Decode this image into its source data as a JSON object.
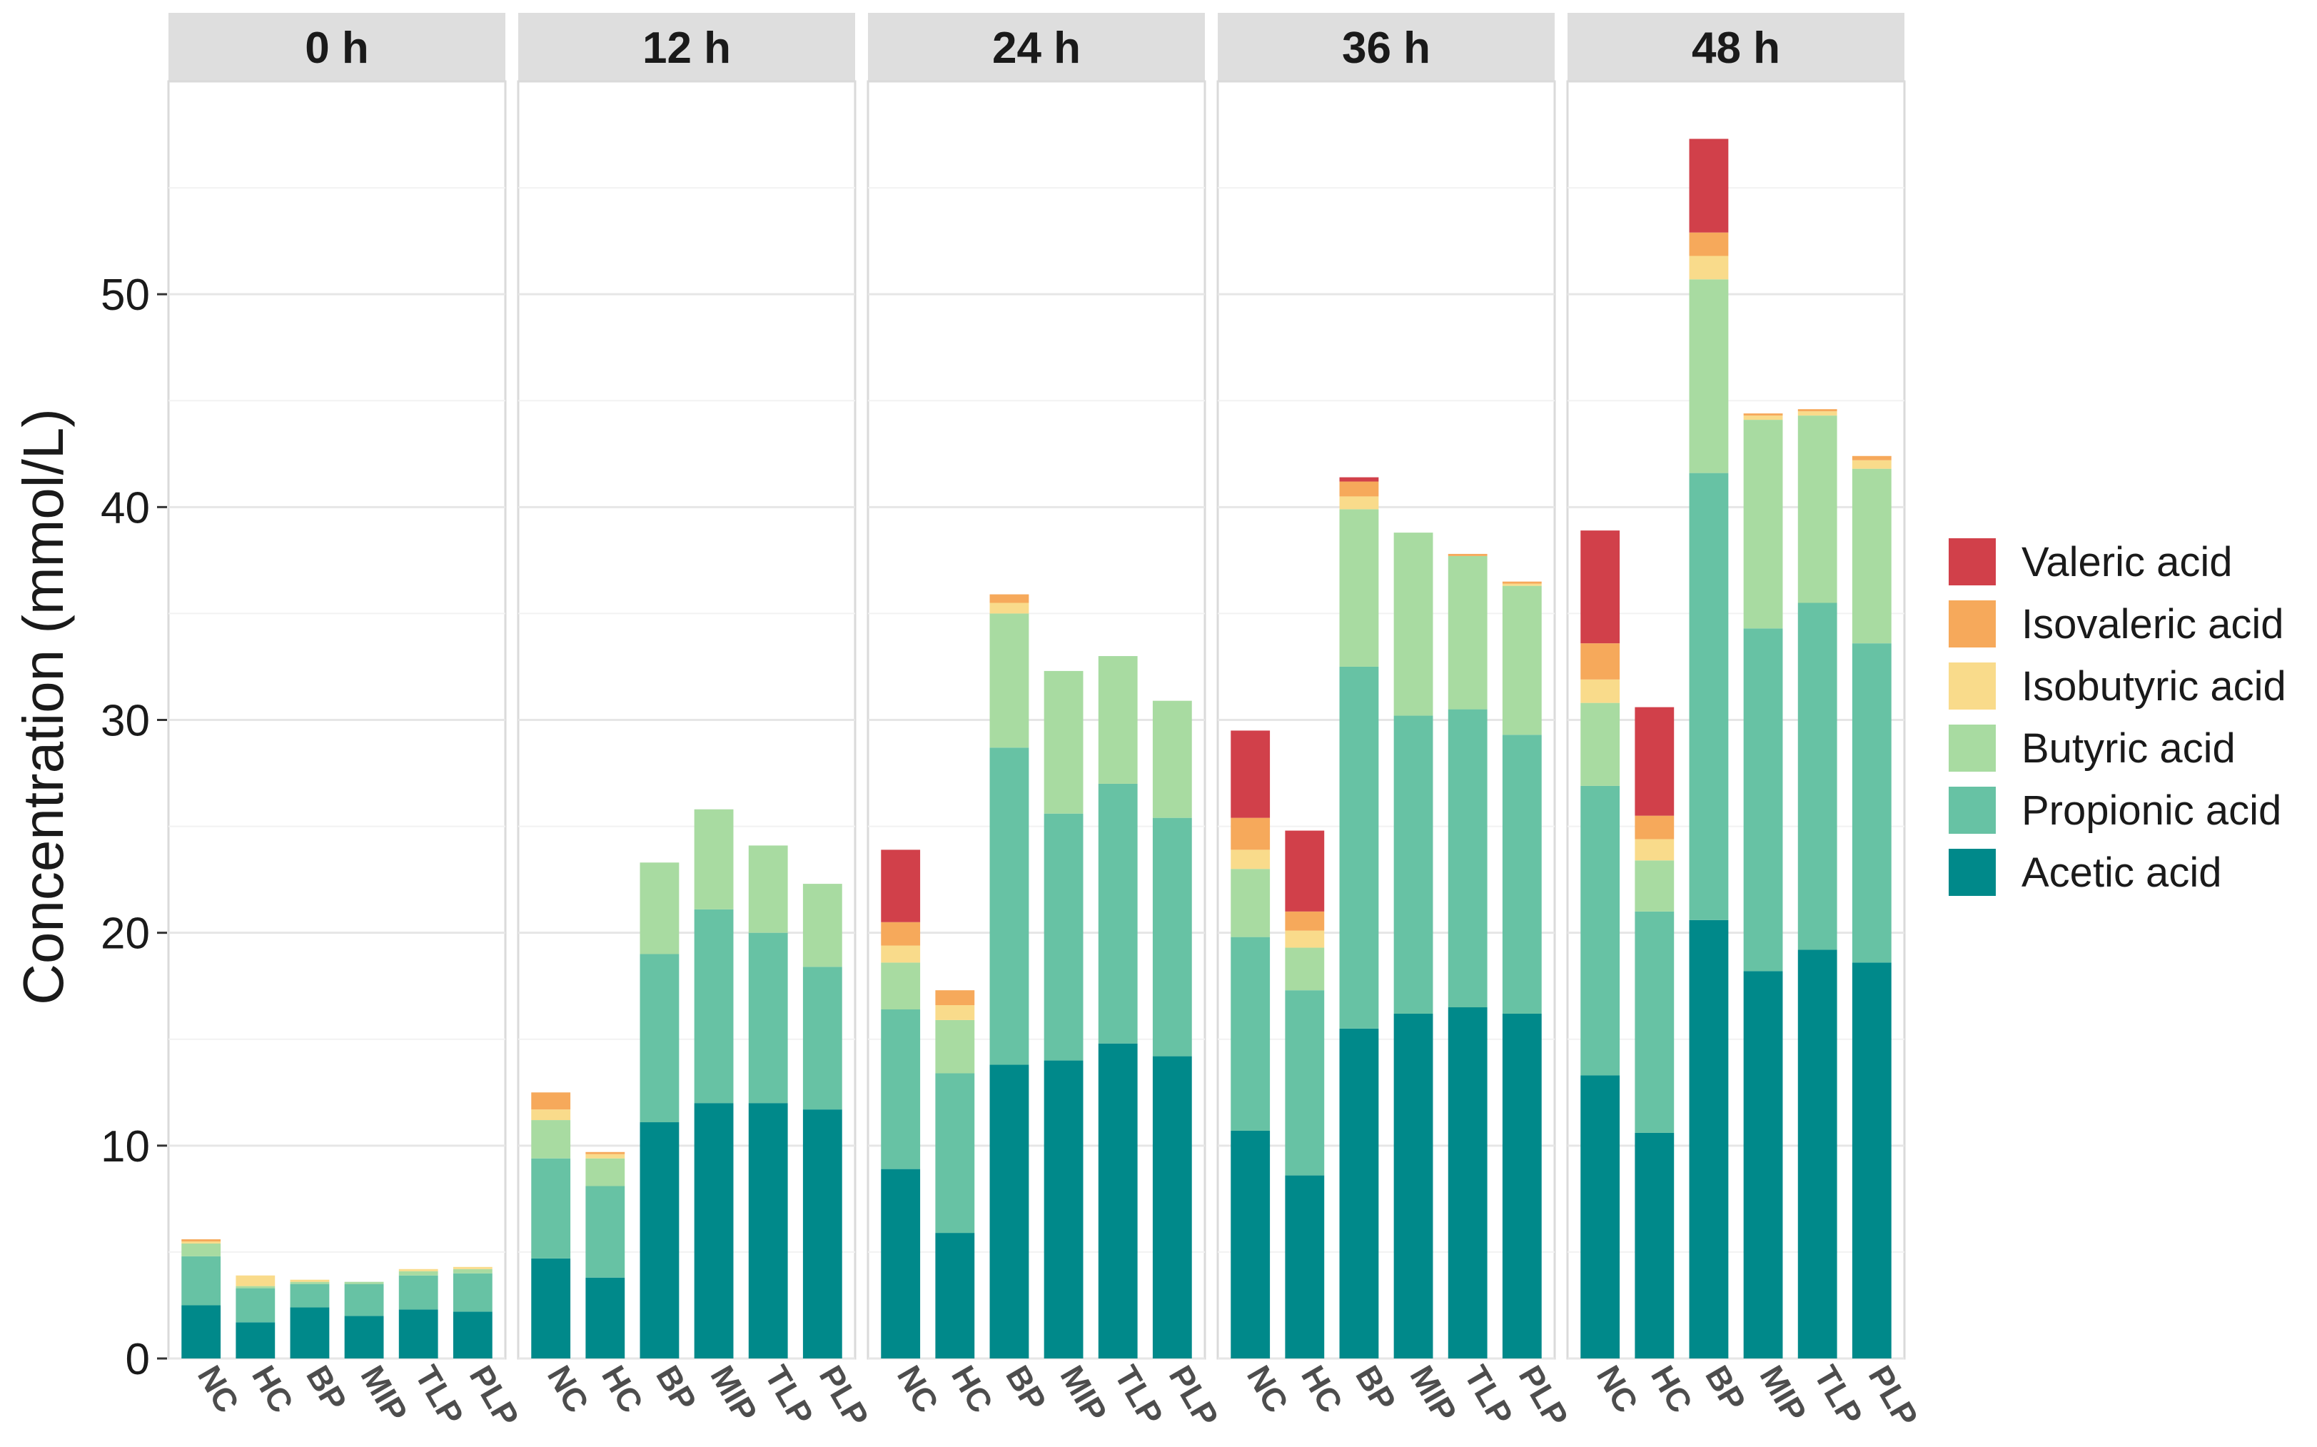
{
  "chart_data": {
    "type": "bar",
    "stacked": true,
    "faceted": true,
    "title": "",
    "xlabel": "",
    "ylabel": "Concentration (mmol/L)",
    "ylim": [
      0,
      60
    ],
    "yticks": [
      0,
      10,
      20,
      30,
      40,
      50
    ],
    "grid": true,
    "legend_position": "right",
    "panels": [
      "0 h",
      "12 h",
      "24 h",
      "36 h",
      "48 h"
    ],
    "categories": [
      "NC",
      "HC",
      "BP",
      "MIP",
      "TLP",
      "PLP"
    ],
    "series": [
      {
        "name": "Acetic acid",
        "color": "#00898A",
        "values": [
          [
            2.5,
            1.7,
            2.4,
            2.0,
            2.3,
            2.2
          ],
          [
            4.7,
            3.8,
            11.1,
            12.0,
            12.0,
            11.7
          ],
          [
            8.9,
            5.9,
            13.8,
            14.0,
            14.8,
            14.2
          ],
          [
            10.7,
            8.6,
            15.5,
            16.2,
            16.5,
            16.2
          ],
          [
            13.3,
            10.6,
            20.6,
            18.2,
            19.2,
            18.6
          ]
        ]
      },
      {
        "name": "Propionic acid",
        "color": "#67C2A4",
        "values": [
          [
            2.3,
            1.6,
            1.1,
            1.5,
            1.6,
            1.8
          ],
          [
            4.7,
            4.3,
            7.9,
            9.1,
            8.0,
            6.7
          ],
          [
            7.5,
            7.5,
            14.9,
            11.6,
            12.2,
            11.2
          ],
          [
            9.1,
            8.7,
            17.0,
            14.0,
            14.0,
            13.1
          ],
          [
            13.6,
            10.4,
            21.0,
            16.1,
            16.3,
            15.0
          ]
        ]
      },
      {
        "name": "Butyric acid",
        "color": "#A8DBA1",
        "values": [
          [
            0.6,
            0.1,
            0.1,
            0.1,
            0.2,
            0.2
          ],
          [
            1.8,
            1.3,
            4.3,
            4.7,
            4.1,
            3.9
          ],
          [
            2.2,
            2.5,
            6.3,
            6.7,
            6.0,
            5.5
          ],
          [
            3.2,
            2.0,
            7.4,
            8.6,
            7.2,
            7.0
          ],
          [
            3.9,
            2.4,
            9.1,
            9.8,
            8.8,
            8.2
          ]
        ]
      },
      {
        "name": "Isobutyric acid",
        "color": "#F9DB8B",
        "values": [
          [
            0.1,
            0.5,
            0.1,
            0.0,
            0.1,
            0.1
          ],
          [
            0.5,
            0.2,
            0.0,
            0.0,
            0.0,
            0.0
          ],
          [
            0.8,
            0.7,
            0.5,
            0.0,
            0.0,
            0.0
          ],
          [
            0.9,
            0.8,
            0.6,
            0.0,
            0.0,
            0.1
          ],
          [
            1.1,
            1.0,
            1.1,
            0.2,
            0.2,
            0.4
          ]
        ]
      },
      {
        "name": "Isovaleric acid",
        "color": "#F6A95B",
        "values": [
          [
            0.1,
            0.0,
            0.0,
            0.0,
            0.0,
            0.0
          ],
          [
            0.8,
            0.1,
            0.0,
            0.0,
            0.0,
            0.0
          ],
          [
            1.1,
            0.7,
            0.4,
            0.0,
            0.0,
            0.0
          ],
          [
            1.5,
            0.9,
            0.7,
            0.0,
            0.1,
            0.1
          ],
          [
            1.7,
            1.1,
            1.1,
            0.1,
            0.1,
            0.2
          ]
        ]
      },
      {
        "name": "Valeric acid",
        "color": "#D1404A",
        "values": [
          [
            0.0,
            0.0,
            0.0,
            0.0,
            0.0,
            0.0
          ],
          [
            0.0,
            0.0,
            0.0,
            0.0,
            0.0,
            0.0
          ],
          [
            3.4,
            0.0,
            0.0,
            0.0,
            0.0,
            0.0
          ],
          [
            4.1,
            3.8,
            0.2,
            0.0,
            0.0,
            0.0
          ],
          [
            5.3,
            5.1,
            4.4,
            0.0,
            0.0,
            0.0
          ]
        ]
      }
    ],
    "legend_order": [
      "Valeric acid",
      "Isovaleric acid",
      "Isobutyric acid",
      "Butyric acid",
      "Propionic acid",
      "Acetic acid"
    ]
  }
}
